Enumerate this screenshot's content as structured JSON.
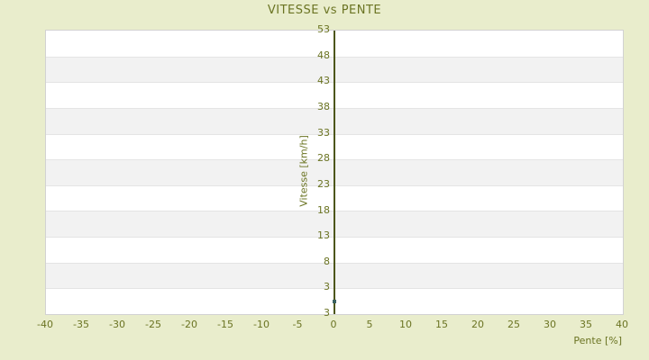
{
  "page": {
    "background": "#e9edcc"
  },
  "chart_data": {
    "type": "scatter",
    "title": "VITESSE vs PENTE",
    "xlabel": "Pente [%]",
    "ylabel": "Vitesse [km/h]",
    "xlim": [
      -40,
      40
    ],
    "ylim": [
      -2,
      53
    ],
    "x_tick_labels": [
      "-40",
      "-35",
      "-30",
      "-25",
      "-20",
      "-15",
      "-10",
      "-5",
      "0",
      "5",
      "10",
      "15",
      "20",
      "25",
      "30",
      "35",
      "40"
    ],
    "y_tick_labels": [
      "53",
      "48",
      "43",
      "38",
      "33",
      "28",
      "23",
      "18",
      "13",
      "8",
      "3",
      "3"
    ],
    "y_axis_line_at_x": 0,
    "points": [
      {
        "x": 0,
        "y": 0.5
      }
    ],
    "grid": "horizontal-alternating-bands",
    "legend": "none",
    "colors": {
      "background": "#e9edcc",
      "text": "#6b7423",
      "band_light": "#ffffff",
      "band_dark": "#f2f2f2",
      "band_separator": "#e4e4e4",
      "plot_border": "#d2d2d2",
      "axis_line": "#4d5619",
      "marker": "#3a6160"
    }
  }
}
